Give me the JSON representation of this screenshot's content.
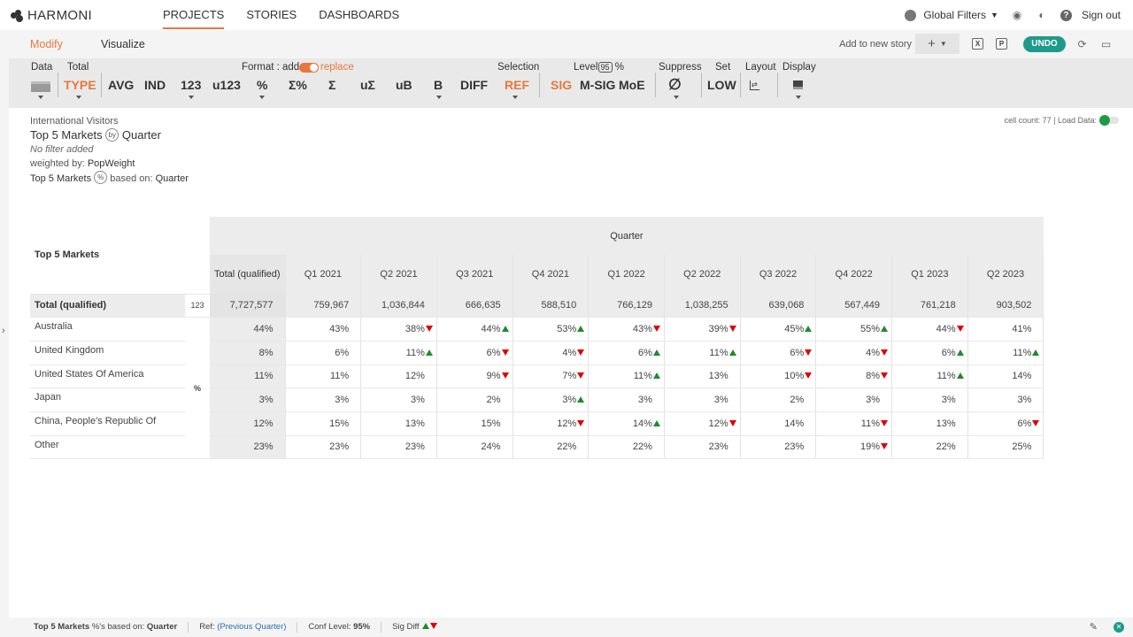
{
  "app": {
    "logo": "HARMONI"
  },
  "nav": {
    "links": [
      "PROJECTS",
      "STORIES",
      "DASHBOARDS"
    ],
    "global_filters": "Global Filters",
    "sign_out": "Sign out"
  },
  "subbar": {
    "tabs": [
      "Modify",
      "Visualize"
    ],
    "add_to_story": "Add to new story",
    "undo": "UNDO"
  },
  "toolbar": {
    "labels": {
      "data": "Data",
      "total": "Total",
      "format": "Format : add",
      "replace": "replace",
      "selection": "Selection",
      "level": "Level",
      "level_value": "95",
      "level_pct": "%",
      "suppress": "Suppress",
      "set": "Set",
      "layout": "Layout",
      "display": "Display"
    },
    "buttons": [
      "TYPE",
      "AVG",
      "IND",
      "123",
      "u123",
      "%",
      "Σ%",
      "Σ",
      "uΣ",
      "uB",
      "B",
      "DIFF",
      "REF",
      "SIG",
      "M-SIG",
      "MoE",
      "∅",
      "LOW"
    ]
  },
  "meta": {
    "dataset": "International Visitors",
    "title_left": "Top 5 Markets",
    "by": "by",
    "title_right": "Quarter",
    "no_filter": "No filter added",
    "weighted_label": "weighted by:",
    "weighted_value": "PopWeight",
    "pct_left": "Top 5 Markets",
    "pct_badge": "%",
    "based_on": "based on:",
    "based_value": "Quarter",
    "cell_count": "cell count: 77 | Load Data:"
  },
  "table": {
    "row_header": "Top 5 Markets",
    "col_group": "Quarter",
    "columns": [
      "Total (qualified)",
      "Q1 2021",
      "Q2 2021",
      "Q3 2021",
      "Q4 2021",
      "Q1 2022",
      "Q2 2022",
      "Q3 2022",
      "Q4 2022",
      "Q1 2023",
      "Q2 2023"
    ],
    "total_row": {
      "label": "Total (qualified)",
      "sub": "123",
      "values": [
        "7,727,577",
        "759,967",
        "1,036,844",
        "666,635",
        "588,510",
        "766,129",
        "1,038,255",
        "639,068",
        "567,449",
        "761,218",
        "903,502"
      ]
    },
    "pct_sub": "%",
    "rows": [
      {
        "label": "Australia",
        "values": [
          "44%",
          "43%",
          "38%",
          "44%",
          "53%",
          "43%",
          "39%",
          "45%",
          "55%",
          "44%",
          "41%"
        ],
        "sig": [
          "",
          "",
          "down",
          "up",
          "up",
          "down",
          "down",
          "up",
          "up",
          "down",
          ""
        ]
      },
      {
        "label": "United Kingdom",
        "values": [
          "8%",
          "6%",
          "11%",
          "6%",
          "4%",
          "6%",
          "11%",
          "6%",
          "4%",
          "6%",
          "11%"
        ],
        "sig": [
          "",
          "",
          "up",
          "down",
          "down",
          "up",
          "up",
          "down",
          "down",
          "up",
          "up"
        ]
      },
      {
        "label": "United States Of America",
        "values": [
          "11%",
          "11%",
          "12%",
          "9%",
          "7%",
          "11%",
          "13%",
          "10%",
          "8%",
          "11%",
          "14%"
        ],
        "sig": [
          "",
          "",
          "",
          "down",
          "down",
          "up",
          "",
          "down",
          "down",
          "up",
          ""
        ]
      },
      {
        "label": "Japan",
        "values": [
          "3%",
          "3%",
          "3%",
          "2%",
          "3%",
          "3%",
          "3%",
          "2%",
          "3%",
          "3%",
          "3%"
        ],
        "sig": [
          "",
          "",
          "",
          "",
          "up",
          "",
          "",
          "",
          "",
          "",
          ""
        ]
      },
      {
        "label": "China, People's Republic Of",
        "values": [
          "12%",
          "15%",
          "13%",
          "15%",
          "12%",
          "14%",
          "12%",
          "14%",
          "11%",
          "13%",
          "6%"
        ],
        "sig": [
          "",
          "",
          "",
          "",
          "down",
          "up",
          "down",
          "",
          "down",
          "",
          "down"
        ]
      },
      {
        "label": "Other",
        "values": [
          "23%",
          "23%",
          "23%",
          "24%",
          "22%",
          "22%",
          "23%",
          "23%",
          "19%",
          "22%",
          "25%"
        ],
        "sig": [
          "",
          "",
          "",
          "",
          "",
          "",
          "",
          "",
          "down",
          "",
          ""
        ]
      }
    ]
  },
  "footer": {
    "markets": "Top 5 Markets",
    "pct_based": "%'s based on:",
    "pct_based_value": "Quarter",
    "ref_label": "Ref:",
    "ref_value": "(Previous Quarter)",
    "conf_label": "Conf Level:",
    "conf_value": "95%",
    "sig_diff": "Sig Diff"
  },
  "colors": {
    "accent": "#e8773d",
    "teal": "#1e9a8c",
    "up": "#1e8a2e",
    "down": "#e00000"
  }
}
